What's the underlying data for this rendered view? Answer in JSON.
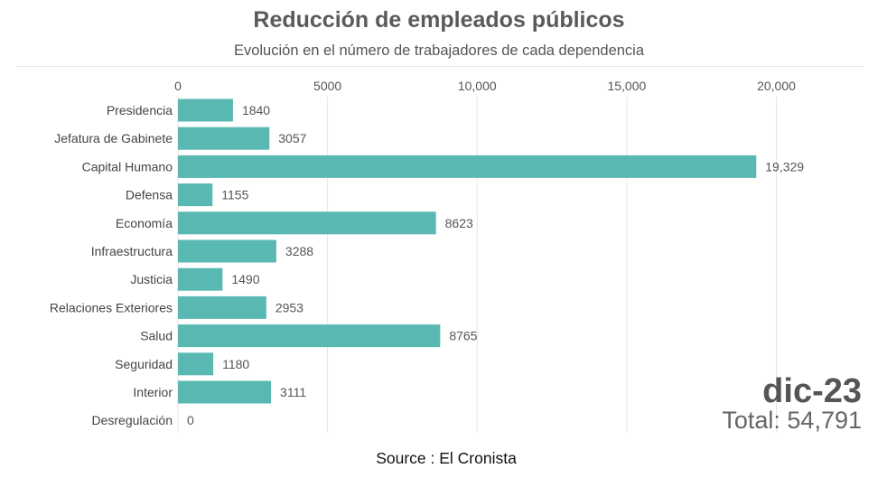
{
  "chart_data": {
    "type": "bar",
    "orientation": "horizontal",
    "title": "Reducción de empleados públicos",
    "subtitle": "Evolución en el número de trabajadores de cada dependencia",
    "categories": [
      "Presidencia",
      "Jefatura de Gabinete",
      "Capital Humano",
      "Defensa",
      "Economía",
      "Infraestructura",
      "Justicia",
      "Relaciones Exteriores",
      "Salud",
      "Seguridad",
      "Interior",
      "Desregulación"
    ],
    "values": [
      1840,
      3057,
      19329,
      1155,
      8623,
      3288,
      1490,
      2953,
      8765,
      1180,
      3111,
      0
    ],
    "value_labels": [
      "1840",
      "3057",
      "19,329",
      "1155",
      "8623",
      "3288",
      "1490",
      "2953",
      "8765",
      "1180",
      "3111",
      "0"
    ],
    "xticks": [
      0,
      5000,
      10000,
      15000,
      20000
    ],
    "xtick_labels": [
      "0",
      "5000",
      "10,000",
      "15,000",
      "20,000"
    ],
    "xlim": [
      0,
      22500
    ],
    "grid": true,
    "bar_color": "#5ab8b2",
    "period": "dic-23",
    "total": "Total: 54,791"
  },
  "source": "Source : El Cronista"
}
